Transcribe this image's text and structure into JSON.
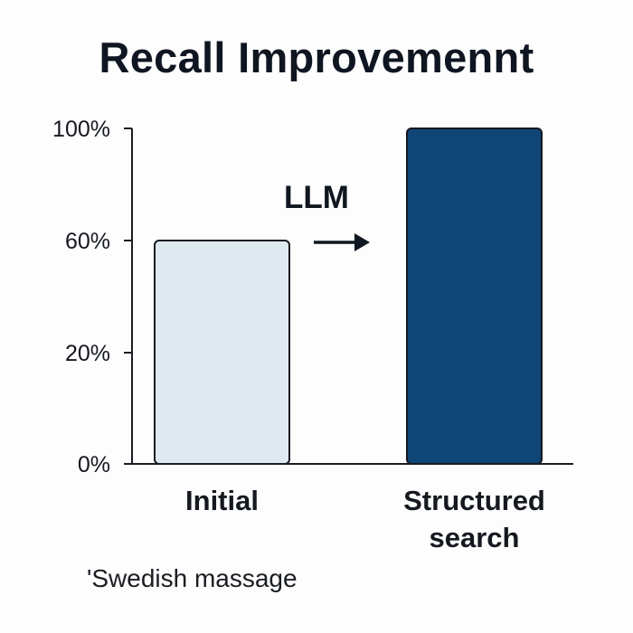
{
  "chart_data": {
    "type": "bar",
    "title": "Recall Improvemennt",
    "categories": [
      "Initial",
      "Structured search"
    ],
    "values": [
      60,
      100
    ],
    "y_ticks": [
      "0%",
      "20%",
      "60%",
      "100%"
    ],
    "annotation": "LLM",
    "bar_colors": [
      "#deeaf0",
      "#0f4577"
    ],
    "grid": false,
    "legend": "none"
  },
  "footnote": "'Swedish massage"
}
